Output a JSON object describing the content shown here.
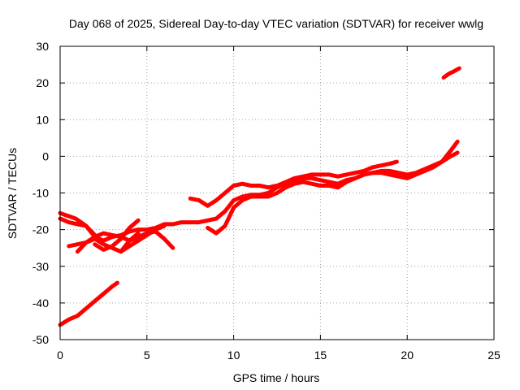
{
  "chart_data": {
    "type": "line",
    "title": "Day 068 of 2025, Sidereal Day-to-day VTEC variation (SDTVAR) for receiver wwlg",
    "xlabel": "GPS time / hours",
    "ylabel": "SDTVAR / TECUs",
    "xlim": [
      0,
      25
    ],
    "ylim": [
      -50,
      30
    ],
    "xticks": [
      0,
      5,
      10,
      15,
      20,
      25
    ],
    "yticks": [
      -50,
      -40,
      -30,
      -20,
      -10,
      0,
      10,
      20,
      30
    ],
    "xtick_labels": [
      "0",
      "5",
      "10",
      "15",
      "20",
      "25"
    ],
    "ytick_labels": [
      "-50",
      "-40",
      "-30",
      "-20",
      "-10",
      "0",
      "10",
      "20",
      "30"
    ],
    "grid": true,
    "legend": "none",
    "color": "#ff0000",
    "series": [
      {
        "x": [
          0.0,
          0.5,
          1.0,
          1.5,
          2.0,
          2.5,
          3.0,
          3.3
        ],
        "y": [
          -46,
          -44.5,
          -43.5,
          -41.5,
          -39.5,
          -37.5,
          -35.5,
          -34.5
        ]
      },
      {
        "x": [
          0.0,
          0.5,
          1.0,
          1.5,
          2.0,
          2.5,
          3.0,
          3.5,
          4.0,
          4.5,
          5.0,
          5.5,
          6.0,
          6.5,
          7.0,
          7.5,
          8.0,
          8.5,
          9.0,
          9.5,
          10.0,
          10.5,
          11.0,
          11.5,
          12.0,
          12.5,
          13.0,
          13.5,
          14.0,
          14.5,
          15.0,
          15.5,
          16.0,
          16.5,
          17.0,
          17.5,
          18.0,
          18.5,
          19.0,
          19.5,
          20.0,
          20.5,
          21.0,
          21.5,
          22.0,
          22.5,
          22.9
        ],
        "y": [
          -17,
          -18,
          -18.5,
          -19,
          -22,
          -23,
          -22,
          -21.5,
          -20.5,
          -20,
          -20,
          -19.5,
          -18.5,
          -18.5,
          -18,
          -18,
          -18,
          -17.5,
          -17,
          -15,
          -12,
          -11,
          -10.5,
          -10.5,
          -10,
          -8.5,
          -7.5,
          -6.5,
          -6,
          -6,
          -6.5,
          -7,
          -7.5,
          -6.5,
          -6,
          -5,
          -4.5,
          -4,
          -4,
          -4.5,
          -5,
          -4.5,
          -3.5,
          -2.5,
          -1.5,
          0,
          1
        ]
      },
      {
        "x": [
          0.0,
          0.3,
          0.6,
          0.9,
          1.2,
          1.5,
          1.8,
          2.1
        ],
        "y": [
          -15.5,
          -16,
          -16.5,
          -17,
          -18,
          -19,
          -20.5,
          -22
        ]
      },
      {
        "x": [
          0.5,
          1.0,
          1.5,
          2.0,
          2.5,
          3.0,
          3.5,
          4.0,
          4.5,
          5.0,
          5.5,
          6.0,
          6.5
        ],
        "y": [
          -24.5,
          -24,
          -23.5,
          -22,
          -21,
          -21.5,
          -22,
          -23,
          -22,
          -21,
          -20.5,
          -22.5,
          -25
        ]
      },
      {
        "x": [
          1.0,
          1.5,
          2.0,
          2.5,
          3.0,
          3.5,
          4.0,
          4.5
        ],
        "y": [
          -26,
          -23.5,
          -22.5,
          -24,
          -25,
          -26,
          -23,
          -21
        ]
      },
      {
        "x": [
          2.0,
          2.5,
          3.0,
          3.5,
          4.0,
          4.5
        ],
        "y": [
          -24,
          -25.5,
          -24.5,
          -22.5,
          -19.5,
          -17.5
        ]
      },
      {
        "x": [
          3.5,
          4.0,
          4.5,
          5.0,
          5.5,
          6.0
        ],
        "y": [
          -26,
          -24.5,
          -23,
          -21.5,
          -20,
          -19
        ]
      },
      {
        "x": [
          7.5,
          8.0,
          8.5,
          9.0,
          9.5,
          10.0,
          10.5,
          11.0,
          11.5,
          12.0,
          12.5,
          13.0,
          13.5,
          14.0,
          14.5,
          15.0,
          15.5,
          16.0,
          16.5,
          17.0,
          17.5,
          18.0,
          18.5,
          19.0,
          19.4
        ],
        "y": [
          -11.5,
          -12,
          -13.5,
          -12,
          -10,
          -8,
          -7.5,
          -8,
          -8,
          -8.5,
          -8,
          -7,
          -6,
          -5.5,
          -5,
          -5,
          -5,
          -5.5,
          -5,
          -4.5,
          -4,
          -3,
          -2.5,
          -2,
          -1.5
        ]
      },
      {
        "x": [
          8.5,
          9.0,
          9.5,
          10.0,
          10.5,
          11.0,
          11.5,
          12.0,
          12.5,
          13.0,
          13.5,
          14.0,
          14.5,
          15.0,
          15.5,
          16.0,
          16.5,
          17.0,
          17.5,
          18.0,
          18.5,
          19.0,
          19.5,
          20.0,
          20.5,
          21.0,
          21.5,
          22.0,
          22.5,
          22.9
        ],
        "y": [
          -19.5,
          -21,
          -19,
          -14,
          -12,
          -11,
          -11,
          -11,
          -10,
          -8.5,
          -7.5,
          -7,
          -7.5,
          -8,
          -8,
          -8.5,
          -7,
          -6,
          -5,
          -4.5,
          -4.5,
          -5,
          -5.5,
          -6,
          -5,
          -4,
          -3,
          -1.5,
          1.5,
          4
        ]
      },
      {
        "x": [
          22.1,
          22.4,
          22.7,
          23.0
        ],
        "y": [
          21.5,
          22.5,
          23.2,
          24
        ]
      }
    ]
  }
}
